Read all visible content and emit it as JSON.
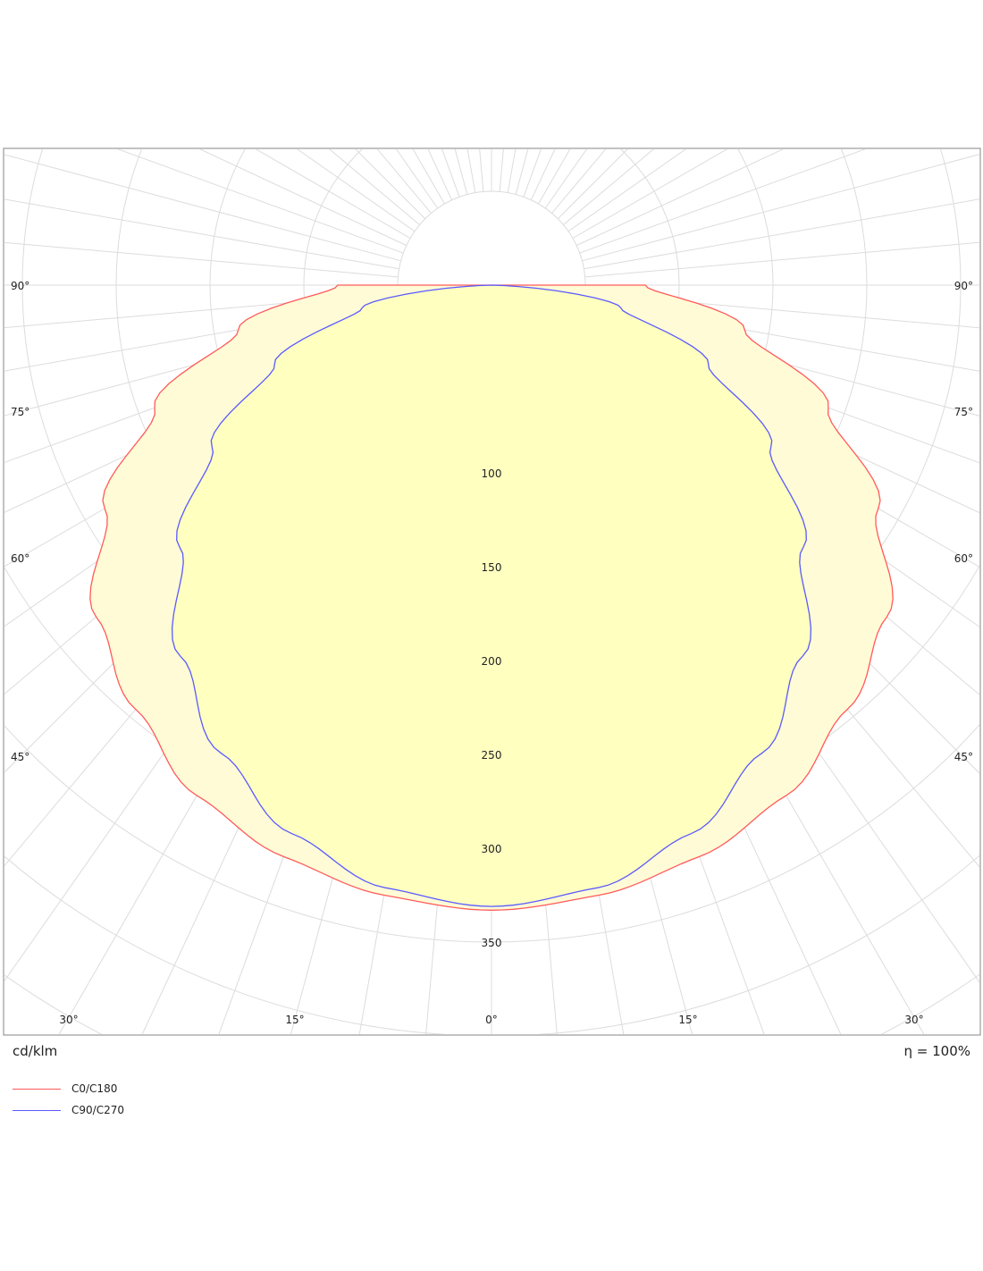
{
  "chart_data": {
    "type": "polar",
    "unit": "cd/klm",
    "efficiency": "η = 100%",
    "radial_range": [
      0,
      400
    ],
    "radial_ticks": [
      100,
      150,
      200,
      250,
      300,
      350
    ],
    "angle_labels_bottom": [
      "30°",
      "15°",
      "0°",
      "15°",
      "30°"
    ],
    "angle_labels_side": [
      "90°",
      "75°",
      "60°",
      "45°"
    ],
    "series": [
      {
        "name": "C0/C180",
        "color": "#ff5a5a",
        "angles": [
          0,
          10,
          20,
          30,
          40,
          50,
          60,
          70,
          80,
          90
        ],
        "values": [
          333,
          330,
          324,
          314,
          295,
          275,
          238,
          191,
          137,
          82
        ]
      },
      {
        "name": "C90/C270",
        "color": "#5a5aff",
        "angles": [
          0,
          10,
          20,
          30,
          40,
          50,
          60,
          70,
          80,
          90
        ],
        "values": [
          331,
          326,
          311,
          288,
          258,
          217,
          172,
          123,
          70,
          0
        ]
      }
    ]
  }
}
